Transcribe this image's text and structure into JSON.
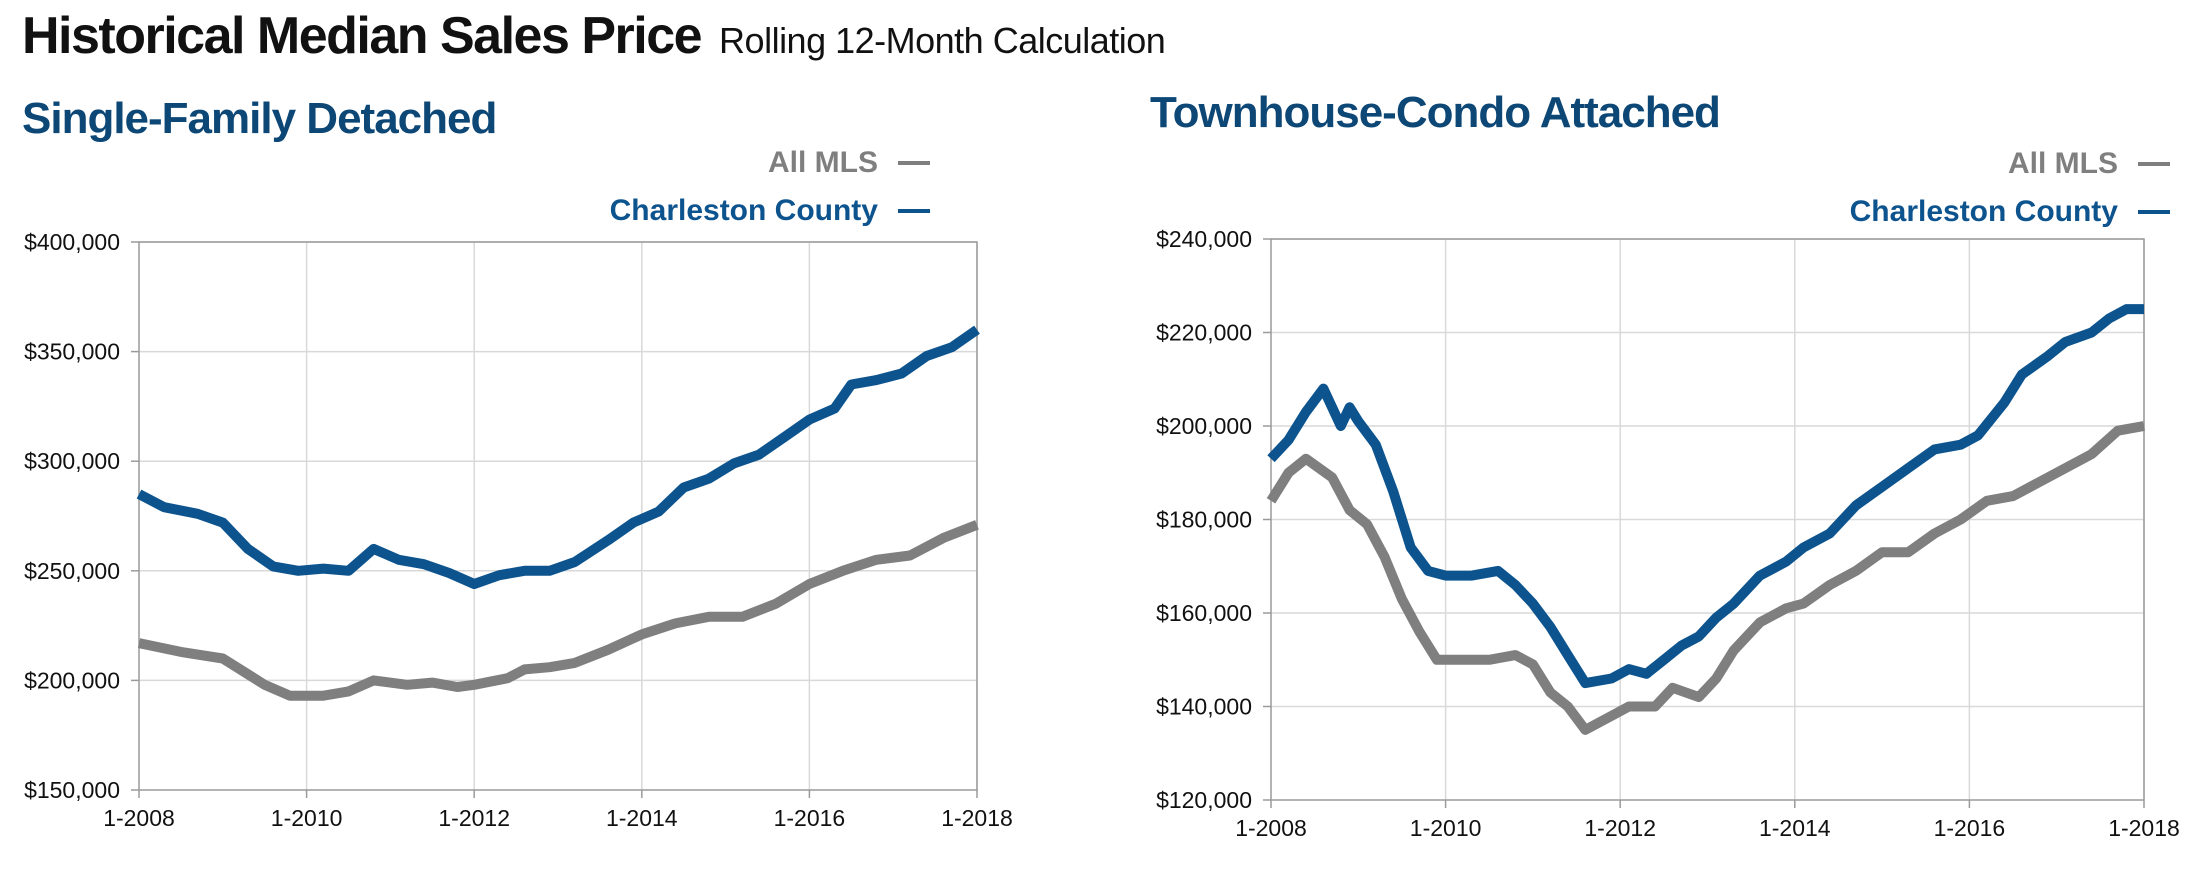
{
  "header": {
    "title": "Historical Median Sales Price",
    "subtitle": "Rolling 12-Month Calculation"
  },
  "colors": {
    "accent_blue": "#0d548f",
    "title_blue": "#0d4776",
    "gray": "#7f7f7f",
    "grid": "#d9d9d9",
    "axis": "#9a9a9a"
  },
  "chart_data": [
    {
      "type": "line",
      "title": "Single-Family Detached",
      "xlabel": "",
      "ylabel": "",
      "xlim": [
        2008,
        2018
      ],
      "ylim": [
        150000,
        400000
      ],
      "x_ticks": [
        2008,
        2010,
        2012,
        2014,
        2016,
        2018
      ],
      "x_tick_labels": [
        "1-2008",
        "1-2010",
        "1-2012",
        "1-2014",
        "1-2016",
        "1-2018"
      ],
      "y_ticks": [
        150000,
        200000,
        250000,
        300000,
        350000,
        400000
      ],
      "y_tick_labels": [
        "$150,000",
        "$200,000",
        "$250,000",
        "$300,000",
        "$350,000",
        "$400,000"
      ],
      "grid": true,
      "legend_position": "top-right",
      "series": [
        {
          "name": "All MLS",
          "color": "#7f7f7f",
          "points": [
            [
              2008.0,
              217000
            ],
            [
              2008.5,
              213000
            ],
            [
              2009.0,
              210000
            ],
            [
              2009.5,
              198000
            ],
            [
              2009.8,
              193000
            ],
            [
              2010.2,
              193000
            ],
            [
              2010.5,
              195000
            ],
            [
              2010.8,
              200000
            ],
            [
              2011.2,
              198000
            ],
            [
              2011.5,
              199000
            ],
            [
              2011.8,
              197000
            ],
            [
              2012.0,
              198000
            ],
            [
              2012.4,
              201000
            ],
            [
              2012.6,
              205000
            ],
            [
              2012.9,
              206000
            ],
            [
              2013.2,
              208000
            ],
            [
              2013.6,
              214000
            ],
            [
              2014.0,
              221000
            ],
            [
              2014.4,
              226000
            ],
            [
              2014.8,
              229000
            ],
            [
              2015.2,
              229000
            ],
            [
              2015.6,
              235000
            ],
            [
              2016.0,
              244000
            ],
            [
              2016.4,
              250000
            ],
            [
              2016.8,
              255000
            ],
            [
              2017.2,
              257000
            ],
            [
              2017.6,
              265000
            ],
            [
              2018.0,
              271000
            ]
          ]
        },
        {
          "name": "Charleston County",
          "color": "#0d548f",
          "points": [
            [
              2008.0,
              285000
            ],
            [
              2008.3,
              279000
            ],
            [
              2008.7,
              276000
            ],
            [
              2009.0,
              272000
            ],
            [
              2009.3,
              260000
            ],
            [
              2009.6,
              252000
            ],
            [
              2009.9,
              250000
            ],
            [
              2010.2,
              251000
            ],
            [
              2010.5,
              250000
            ],
            [
              2010.8,
              260000
            ],
            [
              2011.1,
              255000
            ],
            [
              2011.4,
              253000
            ],
            [
              2011.7,
              249000
            ],
            [
              2012.0,
              244000
            ],
            [
              2012.3,
              248000
            ],
            [
              2012.6,
              250000
            ],
            [
              2012.9,
              250000
            ],
            [
              2013.2,
              254000
            ],
            [
              2013.6,
              264000
            ],
            [
              2013.9,
              272000
            ],
            [
              2014.2,
              277000
            ],
            [
              2014.5,
              288000
            ],
            [
              2014.8,
              292000
            ],
            [
              2015.1,
              299000
            ],
            [
              2015.4,
              303000
            ],
            [
              2015.7,
              311000
            ],
            [
              2016.0,
              319000
            ],
            [
              2016.3,
              324000
            ],
            [
              2016.5,
              335000
            ],
            [
              2016.8,
              337000
            ],
            [
              2017.1,
              340000
            ],
            [
              2017.4,
              348000
            ],
            [
              2017.7,
              352000
            ],
            [
              2018.0,
              360000
            ]
          ]
        }
      ]
    },
    {
      "type": "line",
      "title": "Townhouse-Condo Attached",
      "xlabel": "",
      "ylabel": "",
      "xlim": [
        2008,
        2018
      ],
      "ylim": [
        120000,
        240000
      ],
      "x_ticks": [
        2008,
        2010,
        2012,
        2014,
        2016,
        2018
      ],
      "x_tick_labels": [
        "1-2008",
        "1-2010",
        "1-2012",
        "1-2014",
        "1-2016",
        "1-2018"
      ],
      "y_ticks": [
        120000,
        140000,
        160000,
        180000,
        200000,
        220000,
        240000
      ],
      "y_tick_labels": [
        "$120,000",
        "$140,000",
        "$160,000",
        "$180,000",
        "$200,000",
        "$220,000",
        "$240,000"
      ],
      "grid": true,
      "legend_position": "top-right",
      "series": [
        {
          "name": "All MLS",
          "color": "#7f7f7f",
          "points": [
            [
              2008.0,
              184000
            ],
            [
              2008.2,
              190000
            ],
            [
              2008.4,
              193000
            ],
            [
              2008.7,
              189000
            ],
            [
              2008.9,
              182000
            ],
            [
              2009.1,
              179000
            ],
            [
              2009.3,
              172000
            ],
            [
              2009.5,
              163000
            ],
            [
              2009.7,
              156000
            ],
            [
              2009.9,
              150000
            ],
            [
              2010.2,
              150000
            ],
            [
              2010.5,
              150000
            ],
            [
              2010.8,
              151000
            ],
            [
              2011.0,
              149000
            ],
            [
              2011.2,
              143000
            ],
            [
              2011.4,
              140000
            ],
            [
              2011.6,
              135000
            ],
            [
              2011.9,
              138000
            ],
            [
              2012.1,
              140000
            ],
            [
              2012.4,
              140000
            ],
            [
              2012.6,
              144000
            ],
            [
              2012.9,
              142000
            ],
            [
              2013.1,
              146000
            ],
            [
              2013.3,
              152000
            ],
            [
              2013.6,
              158000
            ],
            [
              2013.9,
              161000
            ],
            [
              2014.1,
              162000
            ],
            [
              2014.4,
              166000
            ],
            [
              2014.7,
              169000
            ],
            [
              2015.0,
              173000
            ],
            [
              2015.3,
              173000
            ],
            [
              2015.6,
              177000
            ],
            [
              2015.9,
              180000
            ],
            [
              2016.2,
              184000
            ],
            [
              2016.5,
              185000
            ],
            [
              2016.8,
              188000
            ],
            [
              2017.1,
              191000
            ],
            [
              2017.4,
              194000
            ],
            [
              2017.7,
              199000
            ],
            [
              2018.0,
              200000
            ]
          ]
        },
        {
          "name": "Charleston County",
          "color": "#0d548f",
          "points": [
            [
              2008.0,
              193000
            ],
            [
              2008.2,
              197000
            ],
            [
              2008.4,
              203000
            ],
            [
              2008.6,
              208000
            ],
            [
              2008.8,
              200000
            ],
            [
              2008.9,
              204000
            ],
            [
              2009.0,
              201000
            ],
            [
              2009.2,
              196000
            ],
            [
              2009.4,
              186000
            ],
            [
              2009.6,
              174000
            ],
            [
              2009.8,
              169000
            ],
            [
              2010.0,
              168000
            ],
            [
              2010.3,
              168000
            ],
            [
              2010.6,
              169000
            ],
            [
              2010.8,
              166000
            ],
            [
              2011.0,
              162000
            ],
            [
              2011.2,
              157000
            ],
            [
              2011.4,
              151000
            ],
            [
              2011.6,
              145000
            ],
            [
              2011.9,
              146000
            ],
            [
              2012.1,
              148000
            ],
            [
              2012.3,
              147000
            ],
            [
              2012.5,
              150000
            ],
            [
              2012.7,
              153000
            ],
            [
              2012.9,
              155000
            ],
            [
              2013.1,
              159000
            ],
            [
              2013.3,
              162000
            ],
            [
              2013.6,
              168000
            ],
            [
              2013.9,
              171000
            ],
            [
              2014.1,
              174000
            ],
            [
              2014.4,
              177000
            ],
            [
              2014.7,
              183000
            ],
            [
              2015.0,
              187000
            ],
            [
              2015.3,
              191000
            ],
            [
              2015.6,
              195000
            ],
            [
              2015.9,
              196000
            ],
            [
              2016.1,
              198000
            ],
            [
              2016.4,
              205000
            ],
            [
              2016.6,
              211000
            ],
            [
              2016.9,
              215000
            ],
            [
              2017.1,
              218000
            ],
            [
              2017.4,
              220000
            ],
            [
              2017.6,
              223000
            ],
            [
              2017.8,
              225000
            ],
            [
              2018.0,
              225000
            ]
          ]
        }
      ]
    }
  ]
}
